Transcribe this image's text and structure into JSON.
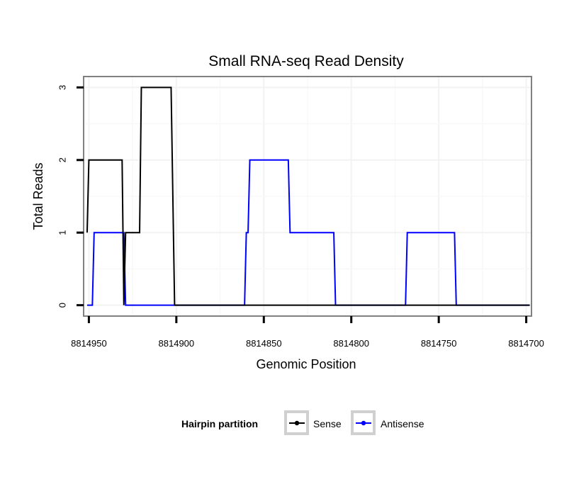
{
  "chart_data": {
    "type": "line",
    "title": "Small RNA-seq Read Density",
    "xlabel": "Genomic Position",
    "ylabel": "Total Reads",
    "x_reversed": true,
    "xlim": [
      8814953,
      8814697
    ],
    "ylim": [
      -0.15,
      3.15
    ],
    "xticks": [
      8814950,
      8814900,
      8814850,
      8814800,
      8814750,
      8814700
    ],
    "xtick_labels": [
      "8814950",
      "8814900",
      "8814850",
      "8814800",
      "8814750",
      "8814700"
    ],
    "yticks": [
      0,
      1,
      2,
      3
    ],
    "ytick_labels": [
      "0",
      "1",
      "2",
      "3"
    ],
    "grid": true,
    "legend": {
      "title": "Hairpin partition",
      "position": "bottom",
      "entries": [
        "Sense",
        "Antisense"
      ]
    },
    "series": [
      {
        "name": "Sense",
        "color": "#000000",
        "x": [
          8814951,
          8814950,
          8814931,
          8814930,
          8814929,
          8814928,
          8814921,
          8814920,
          8814903,
          8814901,
          8814698
        ],
        "values": [
          1,
          2,
          2,
          0,
          1,
          1,
          1,
          3,
          3,
          0,
          0
        ]
      },
      {
        "name": "Antisense",
        "color": "#0000ff",
        "x": [
          8814951,
          8814948,
          8814947,
          8814930,
          8814929,
          8814861,
          8814860,
          8814859,
          8814858,
          8814836,
          8814835,
          8814810,
          8814809,
          8814769,
          8814768,
          8814741,
          8814740,
          8814698
        ],
        "values": [
          0,
          0,
          1,
          1,
          0,
          0,
          1,
          1,
          2,
          2,
          1,
          1,
          0,
          0,
          1,
          1,
          0,
          0
        ]
      }
    ]
  }
}
